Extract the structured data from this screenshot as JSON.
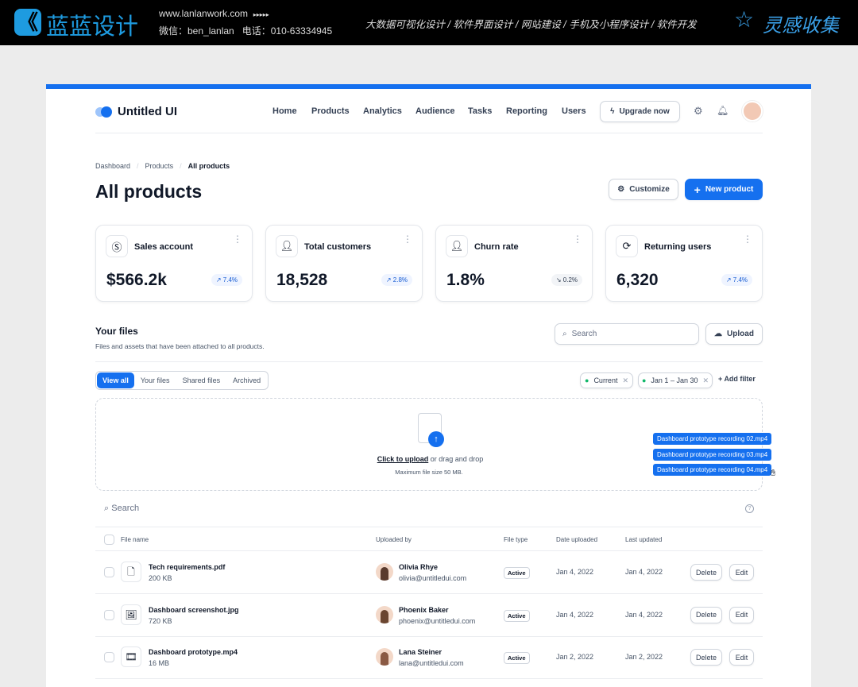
{
  "banner": {
    "brand": "蓝蓝设计",
    "url": "www.lanlanwork.com",
    "arrows": "▸▸▸▸▸",
    "wechat": "微信：ben_lanlan",
    "phone": "电话：010-63334945",
    "services": "大数据可视化设计 / 软件界面设计 / 网站建设 / 手机及小程序设计 / 软件开发",
    "collection": "灵感收集"
  },
  "app": {
    "logo": "Untitled UI",
    "nav": [
      "Home",
      "Products",
      "Analytics",
      "Audience",
      "Tasks",
      "Reporting",
      "Users"
    ],
    "upgrade": "Upgrade now"
  },
  "breadcrumb": [
    "Dashboard",
    "Products",
    "All products"
  ],
  "title": "All products",
  "actions": {
    "customize": "Customize",
    "new_product": "New product"
  },
  "cards": [
    {
      "label": "Sales account",
      "value": "$566.2k",
      "change": "7.4%",
      "trend": "up",
      "icon": "dollar-icon"
    },
    {
      "label": "Total customers",
      "value": "18,528",
      "change": "2.8%",
      "trend": "up",
      "icon": "user-plus-icon"
    },
    {
      "label": "Churn rate",
      "value": "1.8%",
      "change": "0.2%",
      "trend": "down",
      "icon": "user-minus-icon"
    },
    {
      "label": "Returning users",
      "value": "6,320",
      "change": "7.4%",
      "trend": "up",
      "icon": "refresh-icon"
    }
  ],
  "files": {
    "title": "Your files",
    "subtitle": "Files and assets that have been attached to all products.",
    "search_placeholder": "Search",
    "upload": "Upload",
    "tabs": [
      "View all",
      "Your files",
      "Shared files",
      "Archived"
    ],
    "filters": [
      "Current",
      "Jan 1 – Jan 30"
    ],
    "add_filter": "Add filter",
    "drop": {
      "link": "Click to upload",
      "text": " or drag and drop",
      "hint": "Maximum file size 50 MB."
    },
    "dragged": [
      "Dashboard prototype recording 02.mp4",
      "Dashboard prototype recording 03.mp4",
      "Dashboard prototype recording 04.mp4"
    ],
    "table_search": "Search",
    "columns": [
      "File name",
      "Uploaded by",
      "File type",
      "Date uploaded",
      "Last updated"
    ],
    "rows": [
      {
        "name": "Tech requirements.pdf",
        "size": "200 KB",
        "user": "Olivia Rhye",
        "email": "olivia@untitledui.com",
        "type": "Active",
        "uploaded": "Jan 4, 2022",
        "updated": "Jan 4, 2022"
      },
      {
        "name": "Dashboard screenshot.jpg",
        "size": "720 KB",
        "user": "Phoenix Baker",
        "email": "phoenix@untitledui.com",
        "type": "Active",
        "uploaded": "Jan 4, 2022",
        "updated": "Jan 4, 2022"
      },
      {
        "name": "Dashboard prototype.mp4",
        "size": "16 MB",
        "user": "Lana Steiner",
        "email": "lana@untitledui.com",
        "type": "Active",
        "uploaded": "Jan 2, 2022",
        "updated": "Jan 2, 2022"
      }
    ],
    "delete": "Delete",
    "edit": "Edit"
  },
  "colors": {
    "accent": "#1570ef"
  }
}
